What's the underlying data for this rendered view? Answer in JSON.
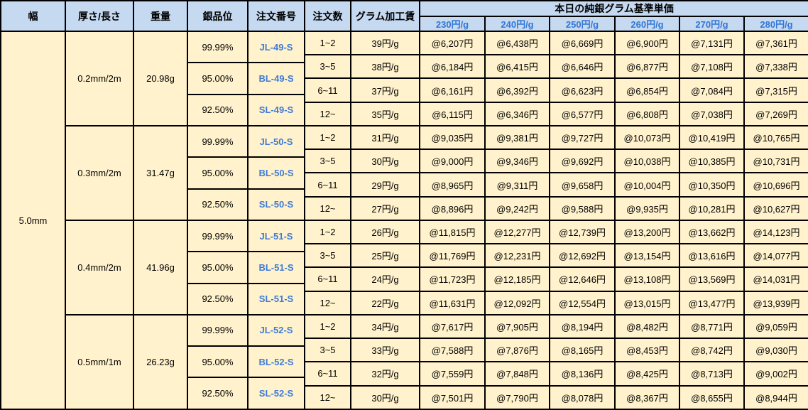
{
  "colors": {
    "header_bg": "#C5D9F1",
    "cell_bg": "#FFF2CC",
    "tier_text_blue": "#3376D4",
    "order_no_blue": "#3E7BD6",
    "border": "#000000",
    "text": "#000000"
  },
  "chart_data": {
    "type": "table",
    "title": "本日の純銀グラム基準単価",
    "header": {
      "width": "幅",
      "thickness_length": "厚さ/長さ",
      "weight": "重量",
      "purity": "銀品位",
      "order_no": "注文番号",
      "order_qty": "注文数",
      "gram_fee": "グラム加工賃",
      "price_group": "本日の純銀グラム基準単価",
      "price_tiers": [
        "230円/g",
        "240円/g",
        "250円/g",
        "260円/g",
        "270円/g",
        "280円/g"
      ]
    },
    "width_value": "5.0mm",
    "blocks": [
      {
        "thickness_length": "0.2mm/2m",
        "weight": "20.98g",
        "purities": [
          {
            "purity": "99.99%",
            "order_no": "JL-49-S"
          },
          {
            "purity": "95.00%",
            "order_no": "BL-49-S"
          },
          {
            "purity": "92.50%",
            "order_no": "SL-49-S"
          }
        ],
        "qty_rows": [
          {
            "qty": "1~2",
            "fee": "39円/g",
            "prices": [
              "@6,207円",
              "@6,438円",
              "@6,669円",
              "@6,900円",
              "@7,131円",
              "@7,361円"
            ]
          },
          {
            "qty": "3~5",
            "fee": "38円/g",
            "prices": [
              "@6,184円",
              "@6,415円",
              "@6,646円",
              "@6,877円",
              "@7,108円",
              "@7,338円"
            ]
          },
          {
            "qty": "6~11",
            "fee": "37円/g",
            "prices": [
              "@6,161円",
              "@6,392円",
              "@6,623円",
              "@6,854円",
              "@7,084円",
              "@7,315円"
            ]
          },
          {
            "qty": "12~",
            "fee": "35円/g",
            "prices": [
              "@6,115円",
              "@6,346円",
              "@6,577円",
              "@6,808円",
              "@7,038円",
              "@7,269円"
            ]
          }
        ]
      },
      {
        "thickness_length": "0.3mm/2m",
        "weight": "31.47g",
        "purities": [
          {
            "purity": "99.99%",
            "order_no": "JL-50-S"
          },
          {
            "purity": "95.00%",
            "order_no": "BL-50-S"
          },
          {
            "purity": "92.50%",
            "order_no": "SL-50-S"
          }
        ],
        "qty_rows": [
          {
            "qty": "1~2",
            "fee": "31円/g",
            "prices": [
              "@9,035円",
              "@9,381円",
              "@9,727円",
              "@10,073円",
              "@10,419円",
              "@10,765円"
            ]
          },
          {
            "qty": "3~5",
            "fee": "30円/g",
            "prices": [
              "@9,000円",
              "@9,346円",
              "@9,692円",
              "@10,038円",
              "@10,385円",
              "@10,731円"
            ]
          },
          {
            "qty": "6~11",
            "fee": "29円/g",
            "prices": [
              "@8,965円",
              "@9,311円",
              "@9,658円",
              "@10,004円",
              "@10,350円",
              "@10,696円"
            ]
          },
          {
            "qty": "12~",
            "fee": "27円/g",
            "prices": [
              "@8,896円",
              "@9,242円",
              "@9,588円",
              "@9,935円",
              "@10,281円",
              "@10,627円"
            ]
          }
        ]
      },
      {
        "thickness_length": "0.4mm/2m",
        "weight": "41.96g",
        "purities": [
          {
            "purity": "99.99%",
            "order_no": "JL-51-S"
          },
          {
            "purity": "95.00%",
            "order_no": "BL-51-S"
          },
          {
            "purity": "92.50%",
            "order_no": "SL-51-S"
          }
        ],
        "qty_rows": [
          {
            "qty": "1~2",
            "fee": "26円/g",
            "prices": [
              "@11,815円",
              "@12,277円",
              "@12,739円",
              "@13,200円",
              "@13,662円",
              "@14,123円"
            ]
          },
          {
            "qty": "3~5",
            "fee": "25円/g",
            "prices": [
              "@11,769円",
              "@12,231円",
              "@12,692円",
              "@13,154円",
              "@13,616円",
              "@14,077円"
            ]
          },
          {
            "qty": "6~11",
            "fee": "24円/g",
            "prices": [
              "@11,723円",
              "@12,185円",
              "@12,646円",
              "@13,108円",
              "@13,569円",
              "@14,031円"
            ]
          },
          {
            "qty": "12~",
            "fee": "22円/g",
            "prices": [
              "@11,631円",
              "@12,092円",
              "@12,554円",
              "@13,015円",
              "@13,477円",
              "@13,939円"
            ]
          }
        ]
      },
      {
        "thickness_length": "0.5mm/1m",
        "weight": "26.23g",
        "purities": [
          {
            "purity": "99.99%",
            "order_no": "JL-52-S"
          },
          {
            "purity": "95.00%",
            "order_no": "BL-52-S"
          },
          {
            "purity": "92.50%",
            "order_no": "SL-52-S"
          }
        ],
        "qty_rows": [
          {
            "qty": "1~2",
            "fee": "34円/g",
            "prices": [
              "@7,617円",
              "@7,905円",
              "@8,194円",
              "@8,482円",
              "@8,771円",
              "@9,059円"
            ]
          },
          {
            "qty": "3~5",
            "fee": "33円/g",
            "prices": [
              "@7,588円",
              "@7,876円",
              "@8,165円",
              "@8,453円",
              "@8,742円",
              "@9,030円"
            ]
          },
          {
            "qty": "6~11",
            "fee": "32円/g",
            "prices": [
              "@7,559円",
              "@7,848円",
              "@8,136円",
              "@8,425円",
              "@8,713円",
              "@9,002円"
            ]
          },
          {
            "qty": "12~",
            "fee": "30円/g",
            "prices": [
              "@7,501円",
              "@7,790円",
              "@8,078円",
              "@8,367円",
              "@8,655円",
              "@8,944円"
            ]
          }
        ]
      }
    ]
  }
}
